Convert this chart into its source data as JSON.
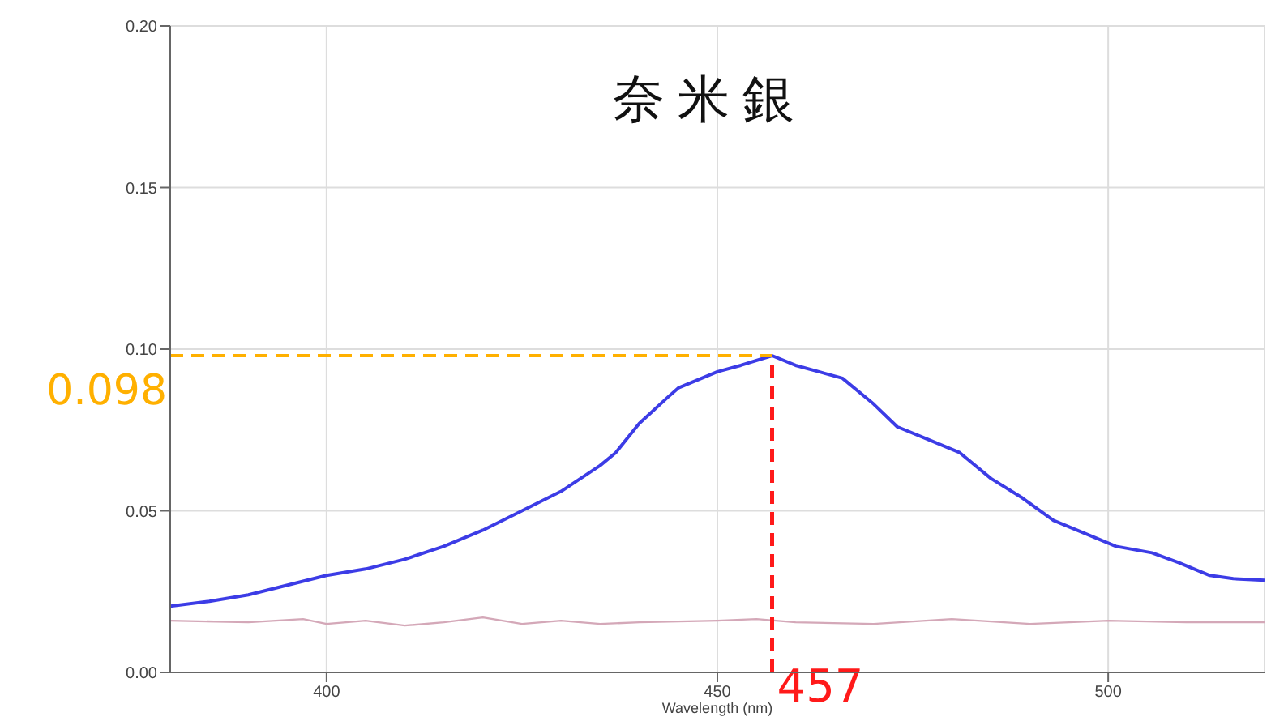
{
  "chart_data": {
    "type": "line",
    "title": "奈米銀",
    "xlabel": "Wavelength (nm)",
    "xlim": [
      380,
      520
    ],
    "xticks": [
      400,
      450,
      500
    ],
    "ylim": [
      0,
      0.2
    ],
    "yticks": [
      {
        "value": 0,
        "label": "0.00"
      },
      {
        "value": 0.05,
        "label": "0.05"
      },
      {
        "value": 0.1,
        "label": "0.10"
      },
      {
        "value": 0.15,
        "label": "0.15"
      },
      {
        "value": 0.2,
        "label": "0.20"
      }
    ],
    "grid": true,
    "legend": false,
    "marker": "none",
    "series": [
      {
        "color": "#3c3ce6",
        "x": [
          380,
          385,
          390,
          395,
          400,
          405,
          410,
          415,
          420,
          425,
          430,
          435,
          437,
          440,
          443.6,
          445,
          450,
          453,
          457,
          460,
          463,
          466,
          470,
          473,
          477,
          481,
          485,
          489,
          493,
          497,
          501,
          505.6,
          509,
          513,
          516,
          520
        ],
        "values": [
          0.0205,
          0.022,
          0.024,
          0.027,
          0.03,
          0.032,
          0.035,
          0.039,
          0.044,
          0.05,
          0.056,
          0.064,
          0.068,
          0.077,
          0.085,
          0.088,
          0.093,
          0.095,
          0.098,
          0.095,
          0.093,
          0.091,
          0.083,
          0.076,
          0.072,
          0.068,
          0.06,
          0.054,
          0.047,
          0.043,
          0.039,
          0.037,
          0.034,
          0.03,
          0.029,
          0.0285
        ]
      },
      {
        "color": "#d4a8b8",
        "x": [
          380,
          390,
          397,
          400,
          405,
          410,
          415,
          420,
          425,
          430,
          435,
          440,
          450,
          455,
          460,
          470,
          480,
          490,
          500,
          510,
          520
        ],
        "values": [
          0.016,
          0.0155,
          0.0165,
          0.015,
          0.016,
          0.0145,
          0.0155,
          0.017,
          0.015,
          0.016,
          0.015,
          0.0155,
          0.016,
          0.0165,
          0.0155,
          0.015,
          0.0165,
          0.015,
          0.016,
          0.0155,
          0.0155
        ]
      }
    ],
    "ref_lines": [
      {
        "axis": "y",
        "value": 0.098,
        "label": "0.098",
        "color": "#ffb000",
        "line_style": "dashed"
      },
      {
        "axis": "x",
        "value": 457,
        "label": "457",
        "color": "#ff1a1a",
        "line_style": "dashed"
      }
    ]
  }
}
